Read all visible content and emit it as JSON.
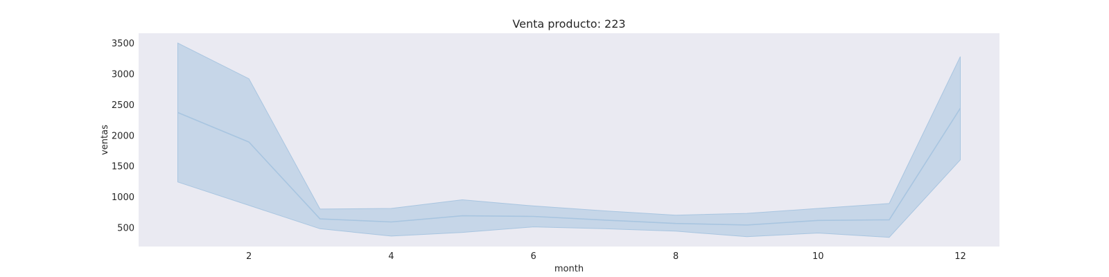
{
  "chart_data": {
    "type": "line",
    "title": "Venta producto: 223",
    "xlabel": "month",
    "ylabel": "ventas",
    "xlim": [
      0.45,
      12.55
    ],
    "ylim": [
      190,
      3660
    ],
    "xticks": [
      2,
      4,
      6,
      8,
      10,
      12
    ],
    "yticks": [
      500,
      1000,
      1500,
      2000,
      2500,
      3000,
      3500
    ],
    "grid": false,
    "background": "#eaeaf2",
    "series": [
      {
        "color": "#a8c5e0",
        "x": [
          1,
          2,
          3,
          4,
          5,
          6,
          7,
          8,
          9,
          10,
          11,
          12
        ],
        "y": [
          2370,
          1890,
          640,
          590,
          690,
          680,
          620,
          565,
          540,
          615,
          625,
          2440
        ],
        "lower": [
          1240,
          860,
          480,
          360,
          420,
          510,
          480,
          440,
          350,
          410,
          340,
          1600
        ],
        "upper": [
          3500,
          2920,
          800,
          810,
          950,
          850,
          770,
          700,
          730,
          810,
          890,
          3280
        ]
      }
    ]
  }
}
